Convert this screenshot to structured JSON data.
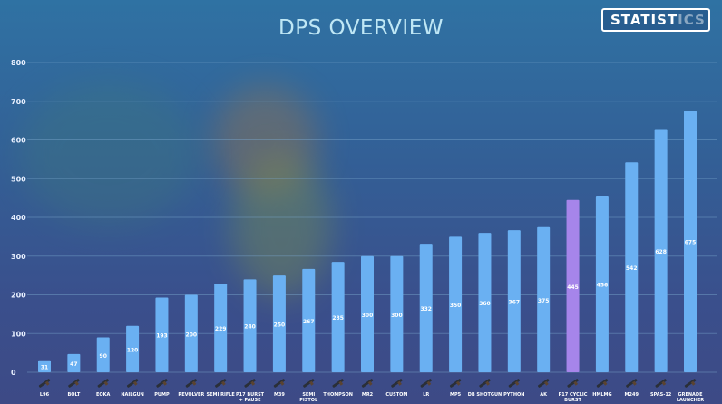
{
  "header": {
    "title": "DPS OVERVIEW",
    "badge_main": "STATIST",
    "badge_faded": "ICS"
  },
  "colors": {
    "bar": "#6ab0f2",
    "bar_highlight": "#a685ea",
    "grid": "#7aa6cc",
    "axis_text": "#e8f0ff"
  },
  "chart_data": {
    "type": "bar",
    "title": "DPS OVERVIEW",
    "xlabel": "",
    "ylabel": "",
    "ylim": [
      0,
      800
    ],
    "yticks": [
      0,
      100,
      200,
      300,
      400,
      500,
      600,
      700,
      800
    ],
    "grid": true,
    "categories": [
      "L96",
      "BOLT",
      "EOKA",
      "NAILGUN",
      "PUMP",
      "REVOLVER",
      "SEMI RIFLE",
      "P17 BURST + PAUSE",
      "M39",
      "SEMI PISTOL",
      "THOMPSON",
      "MR2",
      "CUSTOM",
      "LR",
      "MP5",
      "DB SHOTGUN",
      "PYTHON",
      "AK",
      "P17 CYCLIC BURST",
      "HMLMG",
      "M249",
      "SPAS-12",
      "GRENADE LAUNCHER"
    ],
    "values": [
      31,
      47,
      90,
      120,
      193,
      200,
      229,
      240,
      250,
      267,
      285,
      300,
      300,
      332,
      350,
      360,
      367,
      375,
      445,
      456,
      542,
      628,
      675
    ],
    "highlight_index": 18
  }
}
